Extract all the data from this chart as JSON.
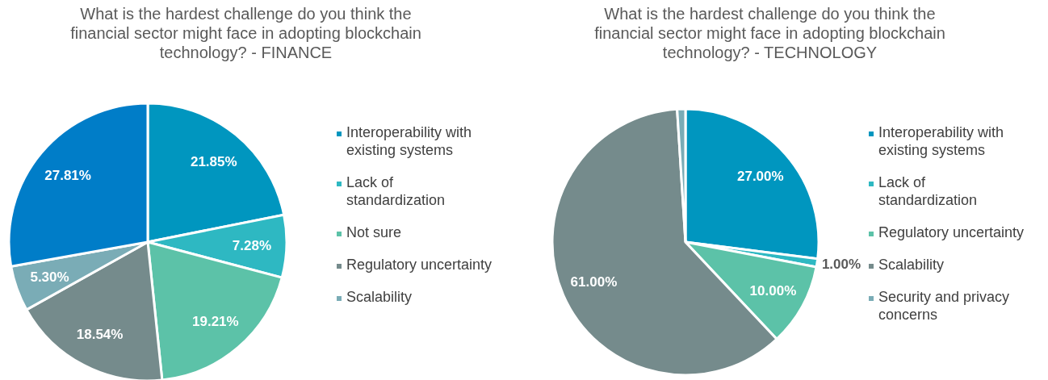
{
  "chart_data": [
    {
      "type": "pie",
      "title": "What is the hardest challenge do you think the financial sector might face in adopting blockchain technology? - FINANCE",
      "categories": [
        "Interoperability with existing systems",
        "Lack of standardization",
        "Not sure",
        "Regulatory uncertainty",
        "Scalability",
        null
      ],
      "values": [
        21.85,
        7.28,
        19.21,
        18.54,
        5.3,
        27.81
      ],
      "value_labels": [
        "21.85%",
        "7.28%",
        "19.21%",
        "18.54%",
        "5.30%",
        "27.81%"
      ],
      "colors": [
        "#0096bf",
        "#2eb8c2",
        "#5cc2a8",
        "#758b8c",
        "#7aacb6",
        "#007dc8"
      ],
      "legend": "right"
    },
    {
      "type": "pie",
      "title": "What is the hardest challenge do you think the financial sector might face in adopting blockchain technology? - TECHNOLOGY",
      "categories": [
        "Interoperability with existing systems",
        "Lack of standardization",
        "Regulatory uncertainty",
        "Scalability",
        "Security and privacy concerns"
      ],
      "values": [
        27,
        1,
        10,
        61,
        1
      ],
      "value_labels": [
        "27.00%",
        "1.00%",
        "10.00%",
        "61.00%",
        null
      ],
      "colors": [
        "#0096bf",
        "#2eb8c2",
        "#5cc2a8",
        "#758b8c",
        "#7aacb6"
      ],
      "legend": "right"
    }
  ]
}
